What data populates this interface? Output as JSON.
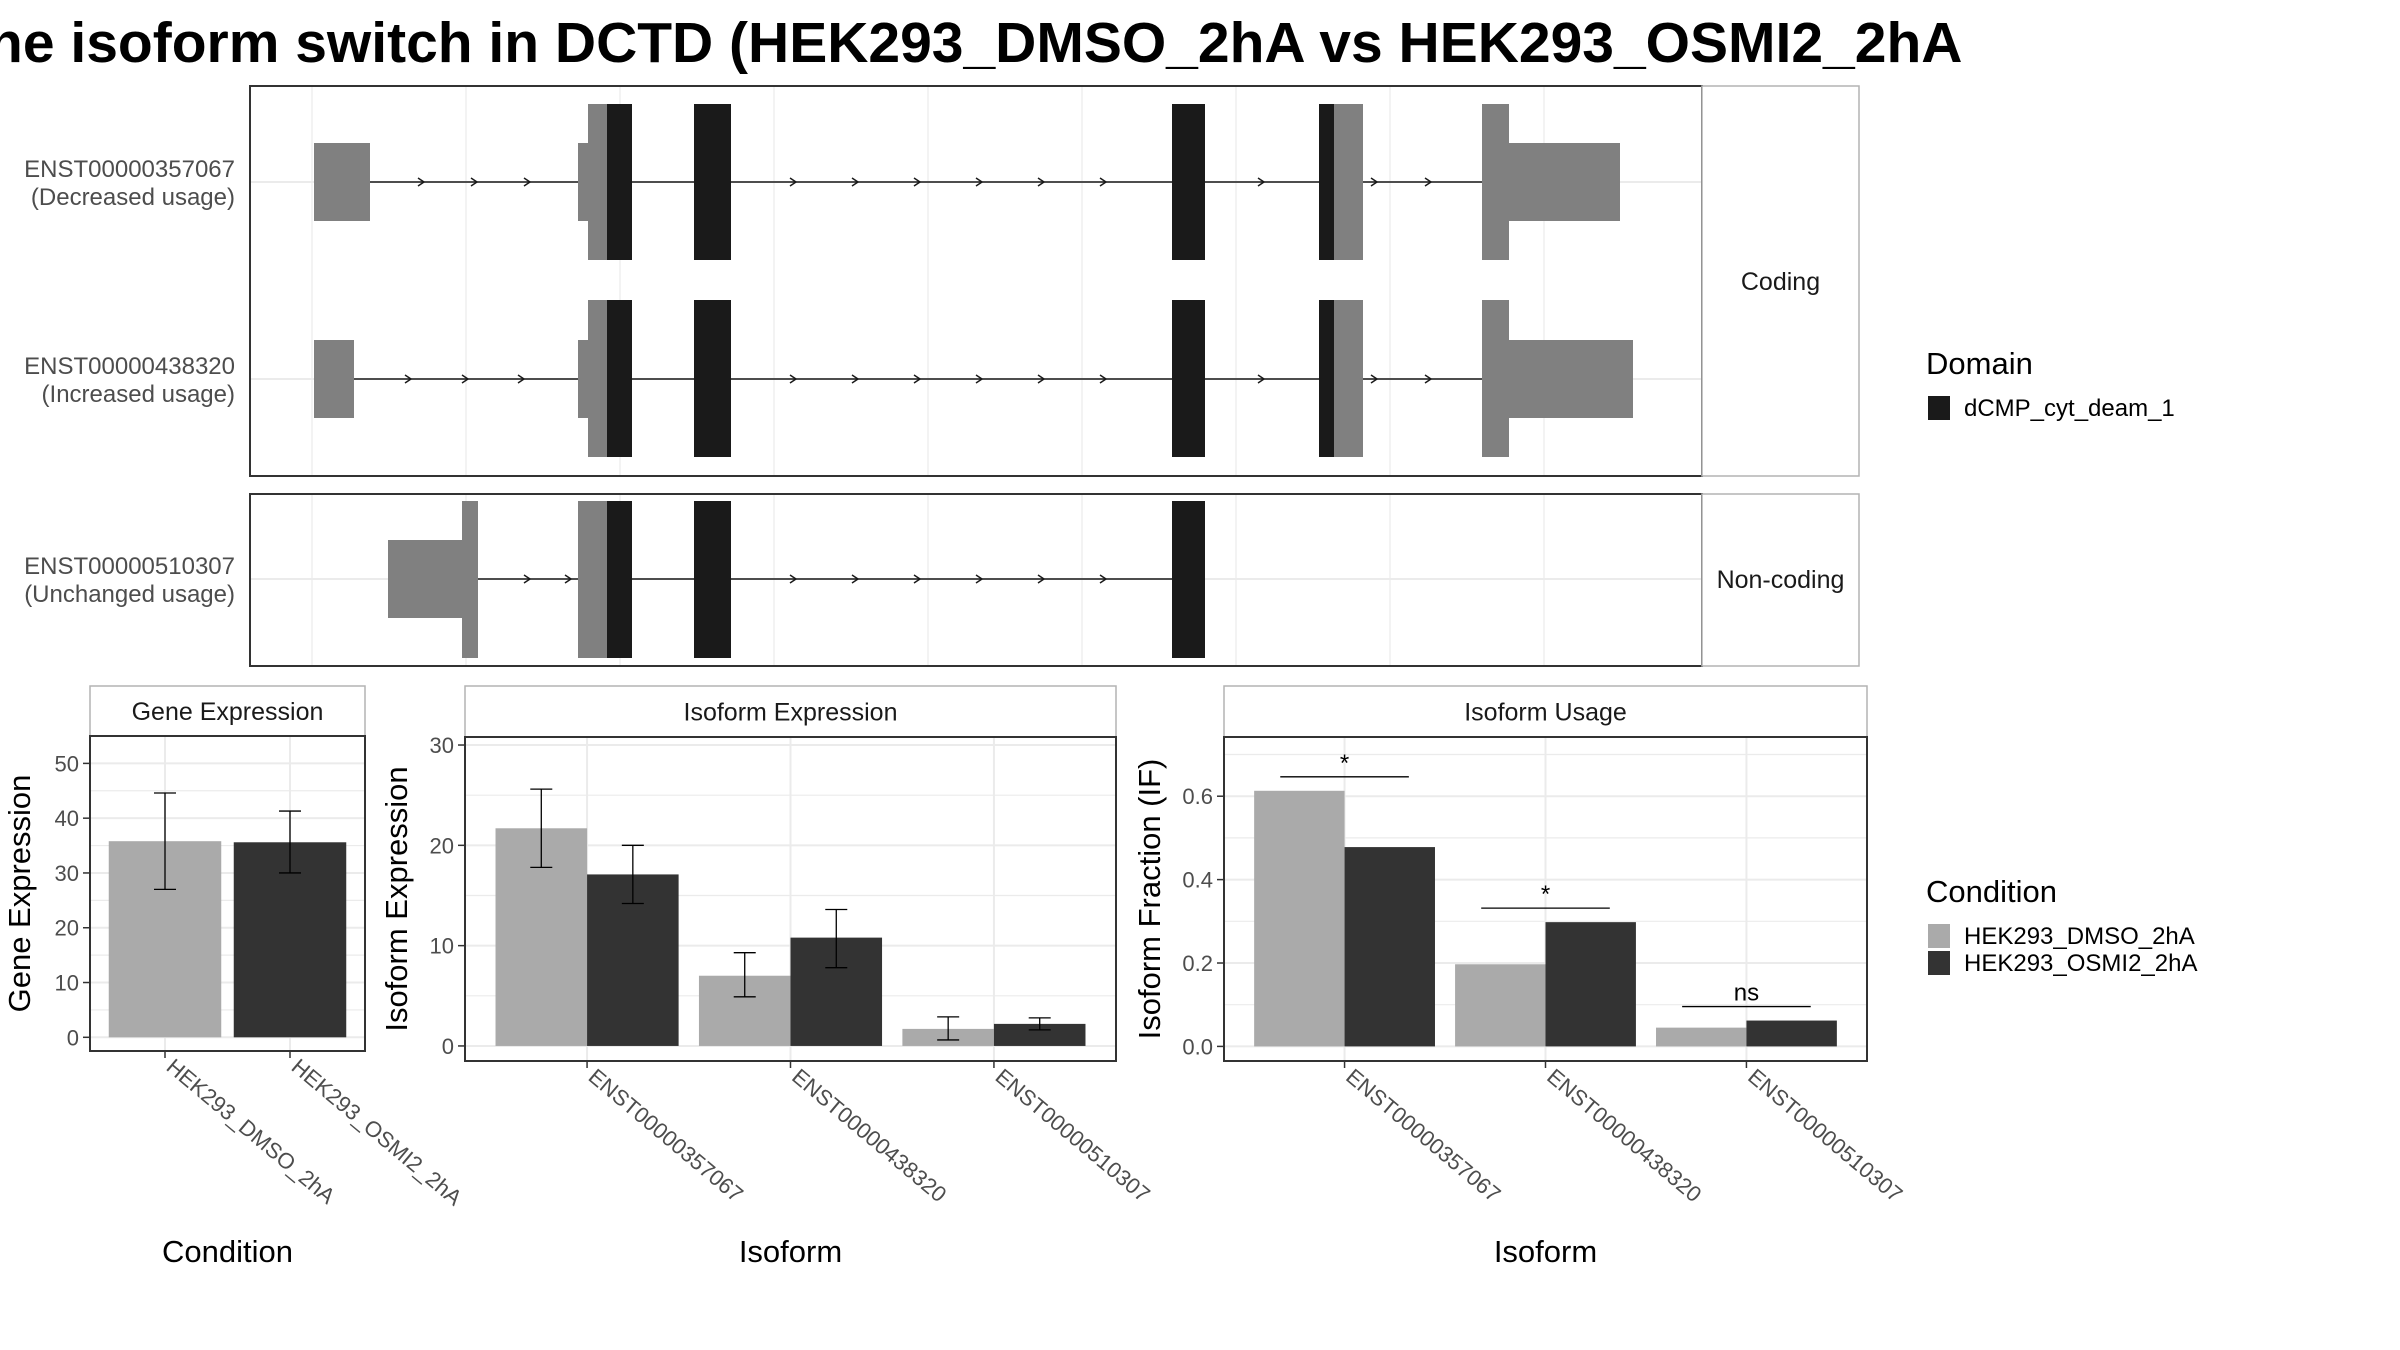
{
  "title": "he isoform switch in DCTD (HEK293_DMSO_2hA vs HEK293_OSMI2_2hA",
  "colors": {
    "utr": "#808080",
    "domain": "#1a1a1a",
    "cond1": "#aaaaaa",
    "cond2": "#333333",
    "grid": "#ebebeb",
    "strip_bg": "#ffffff",
    "panel_border": "#333333"
  },
  "structure": {
    "facets": [
      {
        "label": "Coding",
        "isoforms": [
          {
            "id": "ENST00000357067",
            "usage": "(Decreased usage)"
          },
          {
            "id": "ENST00000438320",
            "usage": "(Increased usage)"
          }
        ]
      },
      {
        "label": "Non-coding",
        "isoforms": [
          {
            "id": "ENST00000510307",
            "usage": "(Unchanged usage)"
          }
        ]
      }
    ]
  },
  "chart_data": [
    {
      "type": "bar",
      "title": "Gene Expression",
      "xlabel": "Condition",
      "ylabel": "Gene Expression",
      "categories": [
        "HEK293_DMSO_2hA",
        "HEK293_OSMI2_2hA"
      ],
      "values": [
        35.8,
        35.6
      ],
      "errors": [
        [
          27.0,
          44.6
        ],
        [
          30.0,
          41.3
        ]
      ],
      "ylim": [
        -2.5,
        55
      ],
      "yticks": [
        0,
        10,
        20,
        30,
        40,
        50
      ]
    },
    {
      "type": "bar",
      "title": "Isoform Expression",
      "xlabel": "Isoform",
      "ylabel": "Isoform Expression",
      "categories": [
        "ENST00000357067",
        "ENST00000438320",
        "ENST00000510307"
      ],
      "series": [
        {
          "name": "HEK293_DMSO_2hA",
          "values": [
            21.7,
            7.0,
            1.7
          ],
          "errors": [
            [
              17.8,
              25.6
            ],
            [
              4.9,
              9.3
            ],
            [
              0.6,
              2.9
            ]
          ]
        },
        {
          "name": "HEK293_OSMI2_2hA",
          "values": [
            17.1,
            10.8,
            2.2
          ],
          "errors": [
            [
              14.2,
              20.0
            ],
            [
              7.8,
              13.6
            ],
            [
              1.6,
              2.8
            ]
          ]
        }
      ],
      "ylim": [
        -1.5,
        30.8
      ],
      "yticks": [
        0,
        10,
        20,
        30
      ]
    },
    {
      "type": "bar",
      "title": "Isoform Usage",
      "xlabel": "Isoform",
      "ylabel": "Isoform Fraction (IF)",
      "categories": [
        "ENST00000357067",
        "ENST00000438320",
        "ENST00000510307"
      ],
      "series": [
        {
          "name": "HEK293_DMSO_2hA",
          "values": [
            0.613,
            0.197,
            0.045
          ]
        },
        {
          "name": "HEK293_OSMI2_2hA",
          "values": [
            0.478,
            0.298,
            0.062
          ]
        }
      ],
      "significance": [
        "*",
        "*",
        "ns"
      ],
      "ylim": [
        -0.035,
        0.742
      ],
      "yticks": [
        0.0,
        0.2,
        0.4,
        0.6
      ]
    }
  ],
  "legend_domain": {
    "title": "Domain",
    "items": [
      "dCMP_cyt_deam_1"
    ]
  },
  "legend_condition": {
    "title": "Condition",
    "items": [
      "HEK293_DMSO_2hA",
      "HEK293_OSMI2_2hA"
    ]
  }
}
